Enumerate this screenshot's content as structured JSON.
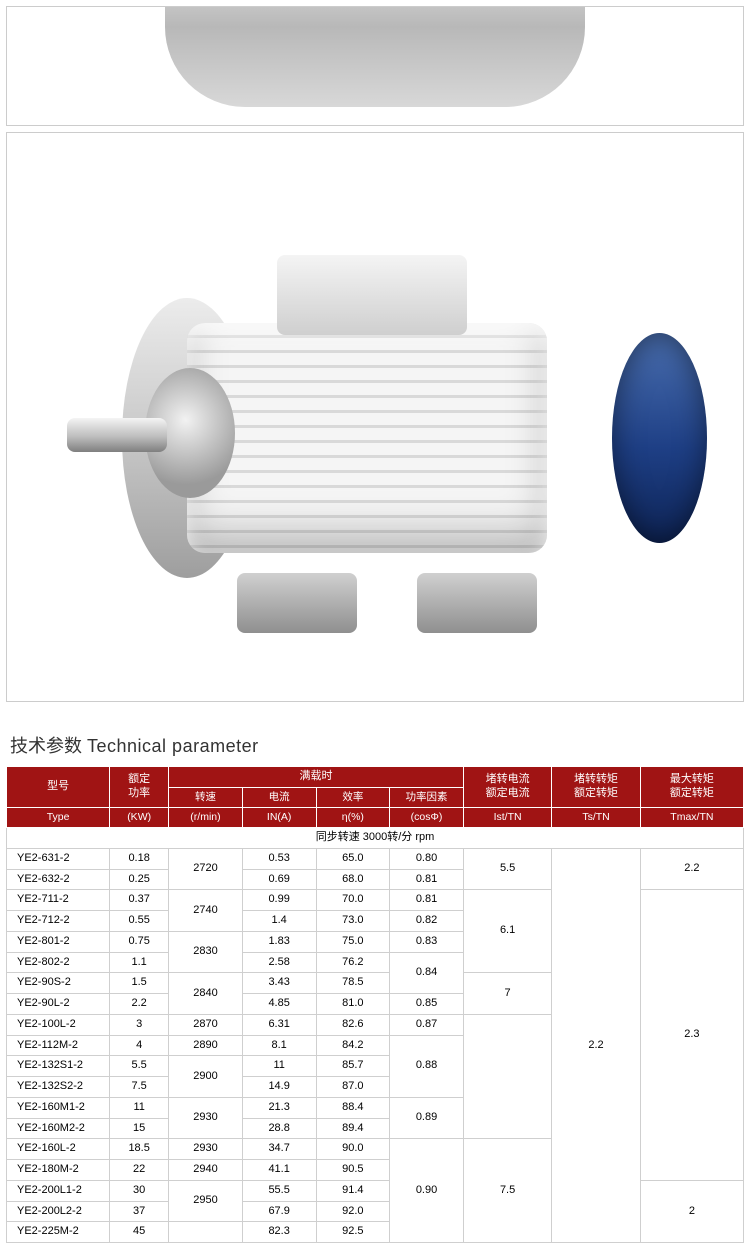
{
  "section_title_zh": "技术参数",
  "section_title_en": "Technical parameter",
  "header": {
    "type_zh": "型号",
    "type_en": "Type",
    "power_zh": "额定\n功率",
    "power_en": "(KW)",
    "fullload_zh": "满载时",
    "speed_zh": "转速",
    "speed_en": "(r/min)",
    "current_zh": "电流",
    "current_en": "IN(A)",
    "eff_zh": "效率",
    "eff_en": "η(%)",
    "pf_zh": "功率因素",
    "pf_en": "(cosΦ)",
    "ist_zh": "堵转电流\n额定电流",
    "ist_en": "Ist/TN",
    "ts_zh": "堵转转矩\n额定转矩",
    "ts_en": "Ts/TN",
    "tmax_zh": "最大转矩\n额定转矩",
    "tmax_en": "Tmax/TN"
  },
  "sync_row": "同步转速 3000转/分 rpm",
  "rows": [
    {
      "type": "YE2-631-2",
      "kw": "0.18",
      "rpm": "",
      "a": "0.53",
      "eff": "65.0",
      "pf": "0.80",
      "ist": "",
      "ts": "",
      "tmax": ""
    },
    {
      "type": "YE2-632-2",
      "kw": "0.25",
      "rpm": "",
      "a": "0.69",
      "eff": "68.0",
      "pf": "0.81",
      "ist": "",
      "ts": "",
      "tmax": ""
    },
    {
      "type": "YE2-711-2",
      "kw": "0.37",
      "rpm": "",
      "a": "0.99",
      "eff": "70.0",
      "pf": "0.81",
      "ist": "",
      "ts": "",
      "tmax": ""
    },
    {
      "type": "YE2-712-2",
      "kw": "0.55",
      "rpm": "",
      "a": "1.4",
      "eff": "73.0",
      "pf": "0.82",
      "ist": "",
      "ts": "",
      "tmax": ""
    },
    {
      "type": "YE2-801-2",
      "kw": "0.75",
      "rpm": "",
      "a": "1.83",
      "eff": "75.0",
      "pf": "0.83",
      "ist": "",
      "ts": "",
      "tmax": ""
    },
    {
      "type": "YE2-802-2",
      "kw": "1.1",
      "rpm": "",
      "a": "2.58",
      "eff": "76.2",
      "pf": "",
      "ist": "",
      "ts": "",
      "tmax": ""
    },
    {
      "type": "YE2-90S-2",
      "kw": "1.5",
      "rpm": "",
      "a": "3.43",
      "eff": "78.5",
      "pf": "",
      "ist": "",
      "ts": "",
      "tmax": ""
    },
    {
      "type": "YE2-90L-2",
      "kw": "2.2",
      "rpm": "",
      "a": "4.85",
      "eff": "81.0",
      "pf": "0.85",
      "ist": "",
      "ts": "",
      "tmax": ""
    },
    {
      "type": "YE2-100L-2",
      "kw": "3",
      "rpm": "2870",
      "a": "6.31",
      "eff": "82.6",
      "pf": "0.87",
      "ist": "",
      "ts": "",
      "tmax": ""
    },
    {
      "type": "YE2-112M-2",
      "kw": "4",
      "rpm": "2890",
      "a": "8.1",
      "eff": "84.2",
      "pf": "",
      "ist": "",
      "ts": "",
      "tmax": ""
    },
    {
      "type": "YE2-132S1-2",
      "kw": "5.5",
      "rpm": "",
      "a": "11",
      "eff": "85.7",
      "pf": "",
      "ist": "",
      "ts": "",
      "tmax": ""
    },
    {
      "type": "YE2-132S2-2",
      "kw": "7.5",
      "rpm": "",
      "a": "14.9",
      "eff": "87.0",
      "pf": "",
      "ist": "",
      "ts": "",
      "tmax": ""
    },
    {
      "type": "YE2-160M1-2",
      "kw": "11",
      "rpm": "",
      "a": "21.3",
      "eff": "88.4",
      "pf": "",
      "ist": "",
      "ts": "",
      "tmax": ""
    },
    {
      "type": "YE2-160M2-2",
      "kw": "15",
      "rpm": "",
      "a": "28.8",
      "eff": "89.4",
      "pf": "",
      "ist": "",
      "ts": "",
      "tmax": ""
    },
    {
      "type": "YE2-160L-2",
      "kw": "18.5",
      "rpm": "2930",
      "a": "34.7",
      "eff": "90.0",
      "pf": "",
      "ist": "",
      "ts": "",
      "tmax": ""
    },
    {
      "type": "YE2-180M-2",
      "kw": "22",
      "rpm": "2940",
      "a": "41.1",
      "eff": "90.5",
      "pf": "",
      "ist": "",
      "ts": "",
      "tmax": ""
    },
    {
      "type": "YE2-200L1-2",
      "kw": "30",
      "rpm": "",
      "a": "55.5",
      "eff": "91.4",
      "pf": "",
      "ist": "",
      "ts": "",
      "tmax": ""
    },
    {
      "type": "YE2-200L2-2",
      "kw": "37",
      "rpm": "",
      "a": "67.9",
      "eff": "92.0",
      "pf": "",
      "ist": "",
      "ts": "",
      "tmax": ""
    },
    {
      "type": "YE2-225M-2",
      "kw": "45",
      "rpm": "",
      "a": "82.3",
      "eff": "92.5",
      "pf": "",
      "ist": "",
      "ts": "",
      "tmax": ""
    }
  ],
  "merges": {
    "rpm": [
      {
        "start": 0,
        "span": 2,
        "val": "2720"
      },
      {
        "start": 2,
        "span": 2,
        "val": "2740"
      },
      {
        "start": 4,
        "span": 2,
        "val": "2830"
      },
      {
        "start": 6,
        "span": 2,
        "val": "2840"
      },
      {
        "start": 8,
        "span": 1,
        "val": "2870"
      },
      {
        "start": 9,
        "span": 1,
        "val": "2890"
      },
      {
        "start": 10,
        "span": 2,
        "val": "2900"
      },
      {
        "start": 12,
        "span": 2,
        "val": "2930"
      },
      {
        "start": 14,
        "span": 1,
        "val": "2930"
      },
      {
        "start": 15,
        "span": 1,
        "val": "2940"
      },
      {
        "start": 16,
        "span": 2,
        "val": "2950"
      },
      {
        "start": 18,
        "span": 1,
        "val": ""
      }
    ],
    "pf": [
      {
        "start": 0,
        "span": 1,
        "val": "0.80"
      },
      {
        "start": 1,
        "span": 1,
        "val": "0.81"
      },
      {
        "start": 2,
        "span": 1,
        "val": "0.81"
      },
      {
        "start": 3,
        "span": 1,
        "val": "0.82"
      },
      {
        "start": 4,
        "span": 1,
        "val": "0.83"
      },
      {
        "start": 5,
        "span": 2,
        "val": "0.84"
      },
      {
        "start": 7,
        "span": 1,
        "val": "0.85"
      },
      {
        "start": 8,
        "span": 1,
        "val": "0.87"
      },
      {
        "start": 9,
        "span": 3,
        "val": "0.88"
      },
      {
        "start": 12,
        "span": 2,
        "val": "0.89"
      },
      {
        "start": 14,
        "span": 5,
        "val": "0.90"
      }
    ],
    "ist": [
      {
        "start": 0,
        "span": 2,
        "val": "5.5"
      },
      {
        "start": 2,
        "span": 4,
        "val": "6.1"
      },
      {
        "start": 6,
        "span": 2,
        "val": "7"
      },
      {
        "start": 8,
        "span": 6,
        "val": ""
      },
      {
        "start": 14,
        "span": 5,
        "val": "7.5"
      }
    ],
    "ts": [
      {
        "start": 0,
        "span": 8,
        "val": ""
      },
      {
        "start": 8,
        "span": 11,
        "val": "2.2"
      }
    ],
    "ts2": [
      {
        "start": 0,
        "span": 19,
        "val": "2.2"
      }
    ],
    "tmax": [
      {
        "start": 0,
        "span": 2,
        "val": "2.2"
      },
      {
        "start": 2,
        "span": 14,
        "val": "2.3"
      },
      {
        "start": 16,
        "span": 3,
        "val": "2"
      }
    ]
  }
}
